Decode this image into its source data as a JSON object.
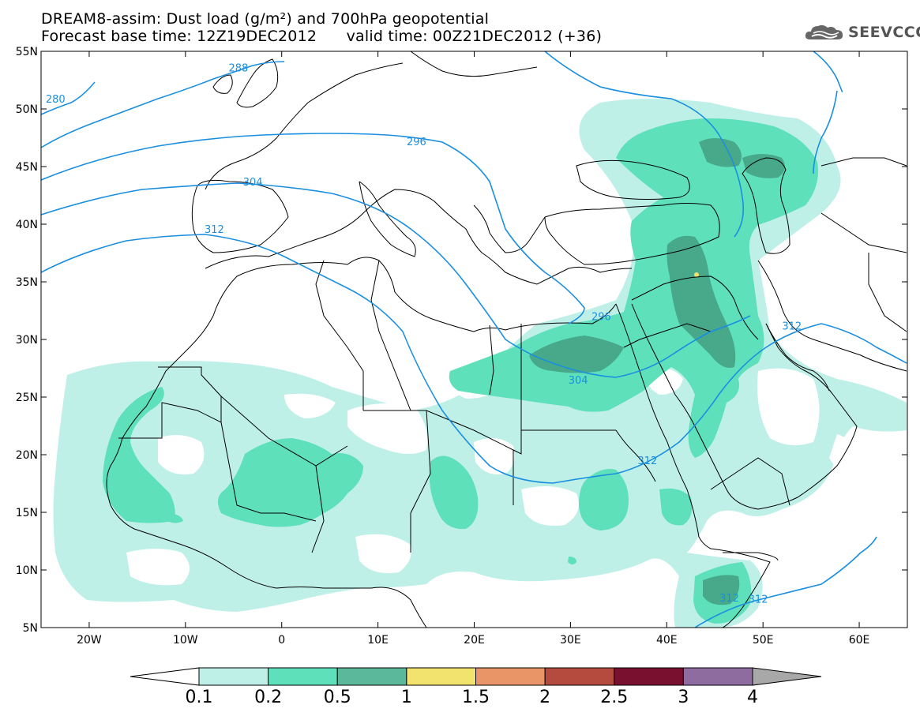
{
  "title": {
    "line1": "DREAM8-assim: Dust load (g/m²) and 700hPa geopotential",
    "line2": "Forecast base time: 12Z19DEC2012      valid time: 00Z21DEC2012 (+36)"
  },
  "logo": {
    "text": "SEEVCCC",
    "icon": "cloud-icon"
  },
  "map": {
    "lat_range": [
      5,
      55
    ],
    "lon_range": [
      -25,
      65
    ],
    "lat_ticks": [
      {
        "value": 55,
        "label": "55N"
      },
      {
        "value": 50,
        "label": "50N"
      },
      {
        "value": 45,
        "label": "45N"
      },
      {
        "value": 40,
        "label": "40N"
      },
      {
        "value": 35,
        "label": "35N"
      },
      {
        "value": 30,
        "label": "30N"
      },
      {
        "value": 25,
        "label": "25N"
      },
      {
        "value": 20,
        "label": "20N"
      },
      {
        "value": 15,
        "label": "15N"
      },
      {
        "value": 10,
        "label": "10N"
      },
      {
        "value": 5,
        "label": "5N"
      }
    ],
    "lon_ticks": [
      {
        "value": -20,
        "label": "20W"
      },
      {
        "value": -10,
        "label": "10W"
      },
      {
        "value": 0,
        "label": "0"
      },
      {
        "value": 10,
        "label": "10E"
      },
      {
        "value": 20,
        "label": "20E"
      },
      {
        "value": 30,
        "label": "30E"
      },
      {
        "value": 40,
        "label": "40E"
      },
      {
        "value": 50,
        "label": "50E"
      },
      {
        "value": 60,
        "label": "60E"
      }
    ],
    "contour_color": "#1a8fe0",
    "contour_labels": [
      {
        "text": "280",
        "lon": -23.5,
        "lat": 50.7
      },
      {
        "text": "288",
        "lon": -4.5,
        "lat": 53.4
      },
      {
        "text": "296",
        "lon": 14.0,
        "lat": 47.0
      },
      {
        "text": "304",
        "lon": -3.0,
        "lat": 43.5
      },
      {
        "text": "312",
        "lon": -7.0,
        "lat": 39.4
      },
      {
        "text": "296",
        "lon": 33.2,
        "lat": 31.8
      },
      {
        "text": "304",
        "lon": 30.8,
        "lat": 26.3
      },
      {
        "text": "312",
        "lon": 53.0,
        "lat": 31.0
      },
      {
        "text": "312",
        "lon": 38.0,
        "lat": 19.3
      },
      {
        "text": "312",
        "lon": 46.5,
        "lat": 7.4
      },
      {
        "text": "312",
        "lon": 49.5,
        "lat": 7.3
      }
    ],
    "shading_colors": {
      "0.1": "#bff0e8",
      "0.2": "#5ee0bb",
      "0.5": "#48a88a"
    }
  },
  "colorbar": {
    "colors": [
      "#ffffff",
      "#bff0e8",
      "#5ee0bb",
      "#5cb89a",
      "#f2e26e",
      "#ea9568",
      "#b44b3e",
      "#7a1030",
      "#8e6ca0",
      "#a8a8a8"
    ],
    "labels": [
      "0.1",
      "0.2",
      "0.5",
      "1",
      "1.5",
      "2",
      "2.5",
      "3",
      "4"
    ]
  }
}
